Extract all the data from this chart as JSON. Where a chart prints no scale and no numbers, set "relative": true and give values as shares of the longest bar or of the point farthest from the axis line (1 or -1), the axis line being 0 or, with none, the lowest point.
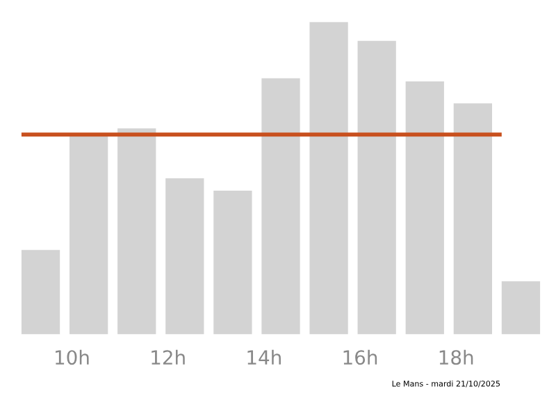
{
  "chart_data": {
    "type": "bar",
    "relative": true,
    "categories": [
      null,
      "10h",
      null,
      "12h",
      null,
      "14h",
      null,
      "16h",
      null,
      "18h",
      null
    ],
    "values": [
      0.27,
      0.64,
      0.66,
      0.5,
      0.46,
      0.82,
      1,
      0.94,
      0.81,
      0.74,
      0.17
    ],
    "color": "#d3d3d3",
    "ref_lines": [
      {
        "axis": "y",
        "value": 0.64,
        "color": "#c8501e",
        "line_style": "solid"
      }
    ],
    "annotations": [
      "Le Mans - mardi 21/10/2025"
    ],
    "grid": false,
    "legend": false
  }
}
